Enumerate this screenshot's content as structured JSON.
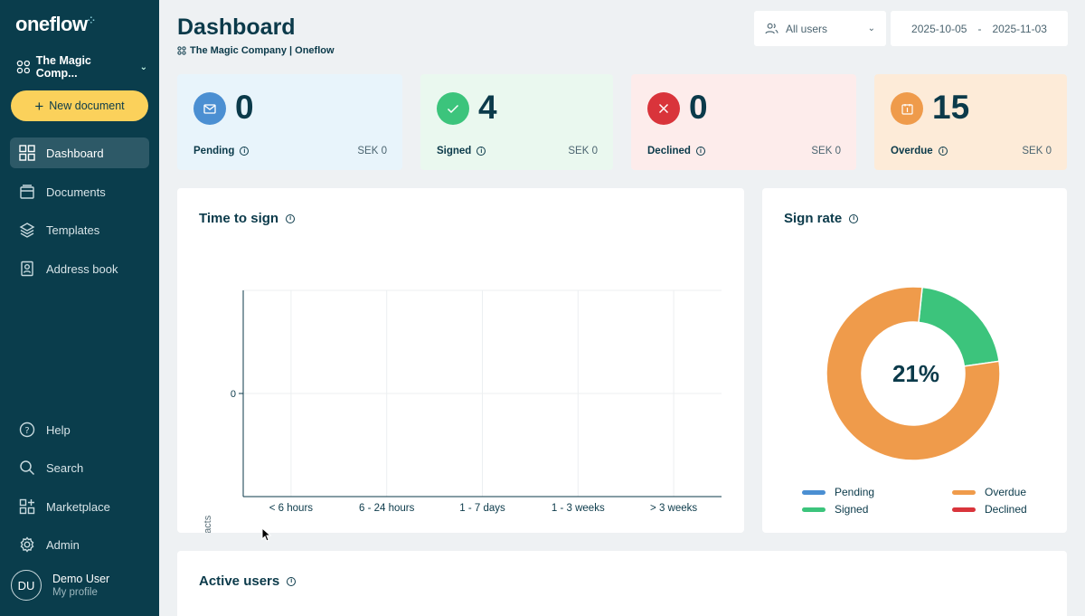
{
  "app": {
    "logo": "oneflow",
    "company": "The Magic Comp...",
    "new_document": "New document",
    "nav": [
      {
        "label": "Dashboard",
        "icon": "grid-icon"
      },
      {
        "label": "Documents",
        "icon": "documents-icon"
      },
      {
        "label": "Templates",
        "icon": "layers-icon"
      },
      {
        "label": "Address book",
        "icon": "address-book-icon"
      }
    ],
    "bottom_nav": [
      {
        "label": "Help",
        "icon": "help-icon"
      },
      {
        "label": "Search",
        "icon": "search-icon"
      },
      {
        "label": "Marketplace",
        "icon": "marketplace-icon"
      },
      {
        "label": "Admin",
        "icon": "gear-icon"
      }
    ],
    "user": {
      "initials": "DU",
      "name": "Demo User",
      "profile": "My profile"
    }
  },
  "header": {
    "title": "Dashboard",
    "subtitle": "The Magic Company | Oneflow",
    "users_filter": "All users",
    "date_from": "2025-10-05",
    "date_sep": "-",
    "date_to": "2025-11-03"
  },
  "stats": [
    {
      "value": "0",
      "label": "Pending",
      "amount": "SEK 0",
      "bg": "#e8f4fb",
      "icon_bg": "#4b8fd2"
    },
    {
      "value": "4",
      "label": "Signed",
      "amount": "SEK 0",
      "bg": "#eaf8ef",
      "icon_bg": "#3cc47c"
    },
    {
      "value": "0",
      "label": "Declined",
      "amount": "SEK 0",
      "bg": "#fdeceb",
      "icon_bg": "#d9343b"
    },
    {
      "value": "15",
      "label": "Overdue",
      "amount": "SEK 0",
      "bg": "#fdebd8",
      "icon_bg": "#ef9b4b"
    }
  ],
  "time_to_sign": {
    "title": "Time to sign",
    "chart_data": {
      "type": "bar",
      "categories": [
        "< 6 hours",
        "6 - 24 hours",
        "1 - 7 days",
        "1 - 3 weeks",
        "> 3 weeks"
      ],
      "values": [
        0,
        0,
        0,
        0,
        0
      ],
      "ylabel": "# of Contracts",
      "yticks": [
        "0"
      ]
    }
  },
  "sign_rate": {
    "title": "Sign rate",
    "center_label": "21%",
    "chart_data": {
      "type": "pie",
      "categories": [
        "Pending",
        "Signed",
        "Overdue",
        "Declined"
      ],
      "values": [
        0,
        4,
        15,
        0
      ],
      "colors": [
        "#4b8fd2",
        "#3cc47c",
        "#ef9b4b",
        "#d9343b"
      ]
    }
  },
  "active_users": {
    "title": "Active users"
  }
}
